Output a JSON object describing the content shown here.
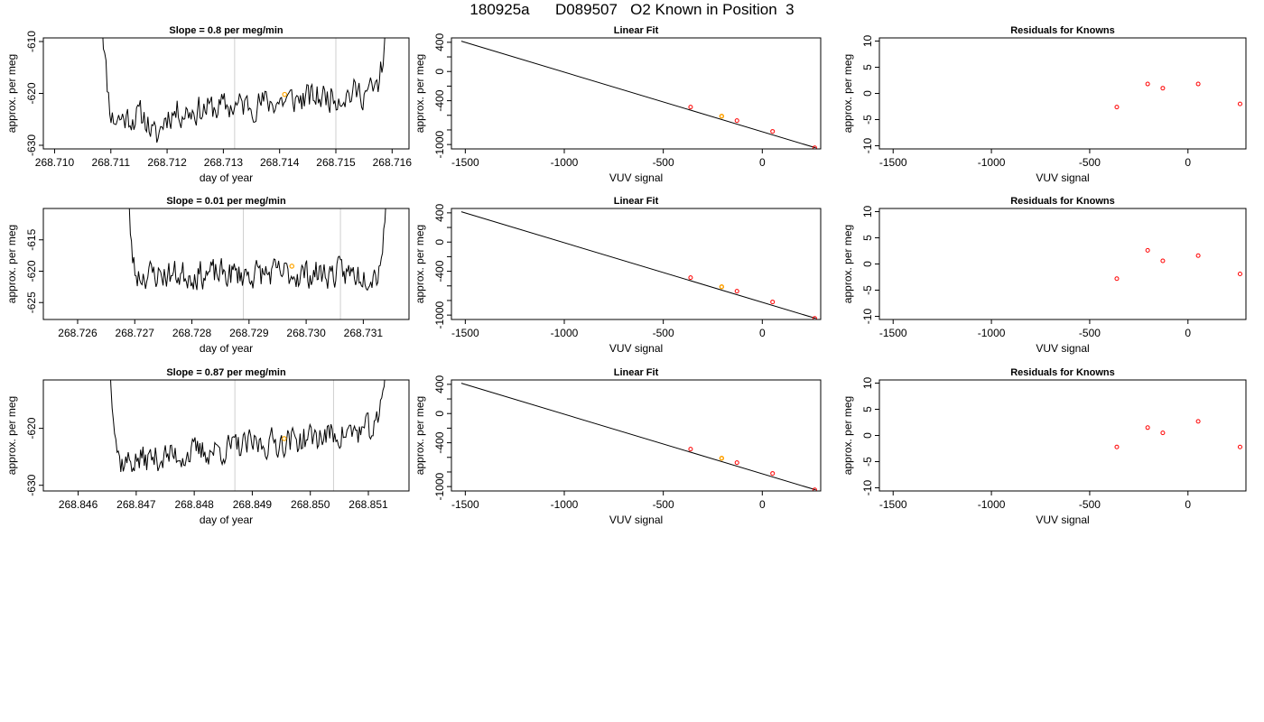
{
  "figure": {
    "title": "180925a      D089507   O2 Known in Position  3",
    "colors": {
      "line": "#000000",
      "grid": "#cfcfcf",
      "known": "#ff0000",
      "sample": "#ffa500",
      "frame": "#000000"
    }
  },
  "chart_data": [
    {
      "type": "line",
      "panel": "time-series",
      "row": 1,
      "title": "Slope =  0.8  per meg/min",
      "xlabel": "day of year",
      "ylabel": "approx. per meg",
      "xlim": [
        268.7098,
        268.7163
      ],
      "ylim": [
        -630.7,
        -609.3
      ],
      "xticks": [
        268.71,
        268.711,
        268.712,
        268.713,
        268.714,
        268.715,
        268.716
      ],
      "xtick_labels": [
        "268.710",
        "268.711",
        "268.712",
        "268.713",
        "268.714",
        "268.715",
        "268.716"
      ],
      "yticks": [
        -610,
        -620,
        -630
      ],
      "ytick_labels": [
        "-610",
        "-620",
        "-630"
      ],
      "vlines": [
        268.7132,
        268.715
      ],
      "x_range": [
        268.7108,
        268.716
      ],
      "baseline": -624.0,
      "drift": 6.0,
      "ripple": 2.6,
      "seed": 11,
      "dip": {
        "x": 268.7118,
        "y": -629.5
      },
      "highlight": {
        "x": 268.71409,
        "y": -620.2
      }
    },
    {
      "type": "line",
      "panel": "linear-fit",
      "row": 1,
      "title": "Linear Fit",
      "xlabel": "VUV signal",
      "ylabel": "approx. per meg",
      "xlim": [
        -1570,
        295
      ],
      "ylim": [
        -1060,
        460
      ],
      "xticks": [
        -1500,
        -1000,
        -500,
        0
      ],
      "xtick_labels": [
        "-1500",
        "-1000",
        "-500",
        "0"
      ],
      "yticks": [
        400,
        0,
        -400,
        -1000
      ],
      "ytick_labels": [
        "400",
        "0",
        "-400",
        "-1000"
      ],
      "fit_line": {
        "x": [
          -1520,
          270
        ],
        "y": [
          415,
          -1045
        ]
      },
      "points": {
        "x": [
          -362,
          -205,
          -128,
          52,
          265
        ],
        "y": [
          -487,
          -612,
          -672,
          -820,
          -1045
        ]
      },
      "highlight": {
        "x": -205,
        "y": -612
      }
    },
    {
      "type": "scatter",
      "panel": "residuals",
      "row": 1,
      "title": "Residuals for Knowns",
      "xlabel": "VUV signal",
      "ylabel": "approx. per meg",
      "xlim": [
        -1570,
        295
      ],
      "ylim": [
        -10.6,
        10.6
      ],
      "xticks": [
        -1500,
        -1000,
        -500,
        0
      ],
      "xtick_labels": [
        "-1500",
        "-1000",
        "-500",
        "0"
      ],
      "yticks": [
        10,
        5,
        0,
        -5,
        -10
      ],
      "ytick_labels": [
        "10",
        "5",
        "0",
        "-5",
        "-10"
      ],
      "points": {
        "x": [
          -362,
          -205,
          -128,
          52,
          265
        ],
        "y": [
          -2.6,
          1.8,
          1.0,
          1.8,
          -2.0
        ]
      }
    },
    {
      "type": "line",
      "panel": "time-series",
      "row": 2,
      "title": "Slope =  0.01  per meg/min",
      "xlabel": "day of year",
      "ylabel": "approx. per meg",
      "xlim": [
        268.7254,
        268.7318
      ],
      "ylim": [
        -627.7,
        -610.0
      ],
      "xticks": [
        268.726,
        268.727,
        268.728,
        268.729,
        268.73,
        268.731
      ],
      "xtick_labels": [
        "268.726",
        "268.727",
        "268.728",
        "268.729",
        "268.730",
        "268.731"
      ],
      "yticks": [
        -615,
        -620,
        -625
      ],
      "ytick_labels": [
        "-615",
        "-620",
        "-625"
      ],
      "vlines": [
        268.7289,
        268.7306
      ],
      "x_range": [
        268.7268,
        268.7315
      ],
      "baseline": -620.5,
      "drift": 0.2,
      "ripple": 2.1,
      "seed": 23,
      "dip": null,
      "highlight": {
        "x": 268.72975,
        "y": -619.2
      }
    },
    {
      "type": "line",
      "panel": "linear-fit",
      "row": 2,
      "title": "Linear Fit",
      "xlabel": "VUV signal",
      "ylabel": "approx. per meg",
      "xlim": [
        -1570,
        295
      ],
      "ylim": [
        -1060,
        460
      ],
      "xticks": [
        -1500,
        -1000,
        -500,
        0
      ],
      "xtick_labels": [
        "-1500",
        "-1000",
        "-500",
        "0"
      ],
      "yticks": [
        400,
        0,
        -400,
        -1000
      ],
      "ytick_labels": [
        "400",
        "0",
        "-400",
        "-1000"
      ],
      "fit_line": {
        "x": [
          -1520,
          270
        ],
        "y": [
          415,
          -1045
        ]
      },
      "points": {
        "x": [
          -362,
          -205,
          -128,
          52,
          265
        ],
        "y": [
          -487,
          -612,
          -672,
          -820,
          -1045
        ]
      },
      "highlight": {
        "x": -205,
        "y": -612
      }
    },
    {
      "type": "scatter",
      "panel": "residuals",
      "row": 2,
      "title": "Residuals for Knowns",
      "xlabel": "VUV signal",
      "ylabel": "approx. per meg",
      "xlim": [
        -1570,
        295
      ],
      "ylim": [
        -10.6,
        10.6
      ],
      "xticks": [
        -1500,
        -1000,
        -500,
        0
      ],
      "xtick_labels": [
        "-1500",
        "-1000",
        "-500",
        "0"
      ],
      "yticks": [
        10,
        5,
        0,
        -5,
        -10
      ],
      "ytick_labels": [
        "10",
        "5",
        "0",
        "-5",
        "-10"
      ],
      "points": {
        "x": [
          -362,
          -205,
          -128,
          52,
          265
        ],
        "y": [
          -2.8,
          2.6,
          0.6,
          1.6,
          -1.9
        ]
      }
    },
    {
      "type": "line",
      "panel": "time-series",
      "row": 3,
      "title": "Slope =  0.87  per meg/min",
      "xlabel": "day of year",
      "ylabel": "approx. per meg",
      "xlim": [
        268.8454,
        268.8517
      ],
      "ylim": [
        -631.0,
        -611.5
      ],
      "xticks": [
        268.846,
        268.847,
        268.848,
        268.849,
        268.85,
        268.851
      ],
      "xtick_labels": [
        "268.846",
        "268.847",
        "268.848",
        "268.849",
        "268.850",
        "268.851"
      ],
      "yticks": [
        -620,
        -630
      ],
      "ytick_labels": [
        "-620",
        "-630"
      ],
      "vlines": [
        268.8487,
        268.8504
      ],
      "x_range": [
        268.8465,
        268.8514
      ],
      "baseline": -625.0,
      "drift": 6.5,
      "ripple": 2.3,
      "seed": 37,
      "dip": null,
      "highlight": {
        "x": 268.84955,
        "y": -621.8
      }
    },
    {
      "type": "line",
      "panel": "linear-fit",
      "row": 3,
      "title": "Linear Fit",
      "xlabel": "VUV signal",
      "ylabel": "approx. per meg",
      "xlim": [
        -1570,
        295
      ],
      "ylim": [
        -1060,
        460
      ],
      "xticks": [
        -1500,
        -1000,
        -500,
        0
      ],
      "xtick_labels": [
        "-1500",
        "-1000",
        "-500",
        "0"
      ],
      "yticks": [
        400,
        0,
        -400,
        -1000
      ],
      "ytick_labels": [
        "400",
        "0",
        "-400",
        "-1000"
      ],
      "fit_line": {
        "x": [
          -1520,
          270
        ],
        "y": [
          415,
          -1045
        ]
      },
      "points": {
        "x": [
          -362,
          -205,
          -128,
          52,
          265
        ],
        "y": [
          -487,
          -612,
          -672,
          -820,
          -1045
        ]
      },
      "highlight": {
        "x": -205,
        "y": -612
      }
    },
    {
      "type": "scatter",
      "panel": "residuals",
      "row": 3,
      "title": "Residuals for Knowns",
      "xlabel": "VUV signal",
      "ylabel": "approx. per meg",
      "xlim": [
        -1570,
        295
      ],
      "ylim": [
        -10.6,
        10.6
      ],
      "xticks": [
        -1500,
        -1000,
        -500,
        0
      ],
      "xtick_labels": [
        "-1500",
        "-1000",
        "-500",
        "0"
      ],
      "yticks": [
        10,
        5,
        0,
        -5,
        -10
      ],
      "ytick_labels": [
        "10",
        "5",
        "0",
        "-5",
        "-10"
      ],
      "points": {
        "x": [
          -362,
          -205,
          -128,
          52,
          265
        ],
        "y": [
          -2.2,
          1.5,
          0.5,
          2.7,
          -2.2
        ]
      }
    }
  ]
}
